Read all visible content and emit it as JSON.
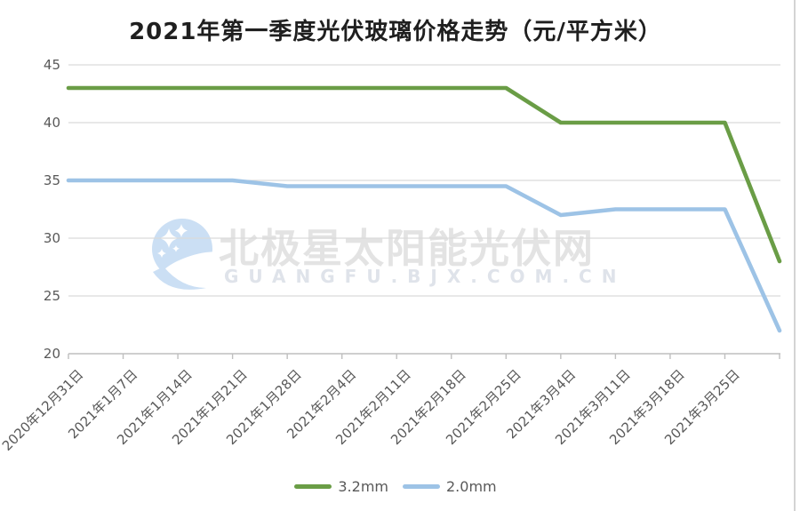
{
  "title": "2021年第一季度光伏玻璃价格走势（元/平方米）",
  "watermark": {
    "text": "北极星太阳能光伏网",
    "url": "GUANGFU.BJX.COM.CN"
  },
  "colors": {
    "title": "#1f1f1f",
    "series_3_2mm": "#6a9d46",
    "series_2_0mm": "#9dc3e6",
    "gridline": "#d9d9d9",
    "axis_line": "#bfbfbf",
    "tick_label": "#595959",
    "legend_label": "#595959",
    "watermark_text": "#e3e3e3",
    "watermark_url": "#dfe3ea",
    "watermark_logo": "#cbdff4",
    "right_border": "#d4d4d4"
  },
  "chart_data": {
    "type": "line",
    "title": "2021年第一季度光伏玻璃价格走势（元/平方米）",
    "categories": [
      "2020年12月31日",
      "2021年1月7日",
      "2021年1月14日",
      "2021年1月21日",
      "2021年1月28日",
      "2021年2月4日",
      "2021年2月11日",
      "2021年2月18日",
      "2021年2月25日",
      "2021年3月4日",
      "2021年3月11日",
      "2021年3月18日",
      "2021年3月25日",
      ""
    ],
    "series": [
      {
        "name": "3.2mm",
        "color": "#6a9d46",
        "values": [
          43,
          43,
          43,
          43,
          43,
          43,
          43,
          43,
          43,
          40,
          40,
          40,
          40,
          28
        ]
      },
      {
        "name": "2.0mm",
        "color": "#9dc3e6",
        "values": [
          35,
          35,
          35,
          35,
          34.5,
          34.5,
          34.5,
          34.5,
          34.5,
          32,
          32.5,
          32.5,
          32.5,
          22
        ]
      }
    ],
    "ylim": [
      20,
      45
    ],
    "yticks": [
      45,
      40,
      35,
      30,
      25,
      20
    ],
    "grid": true,
    "legend_position": "bottom"
  },
  "legend": {
    "items": [
      {
        "label": "3.2mm"
      },
      {
        "label": "2.0mm"
      }
    ]
  }
}
